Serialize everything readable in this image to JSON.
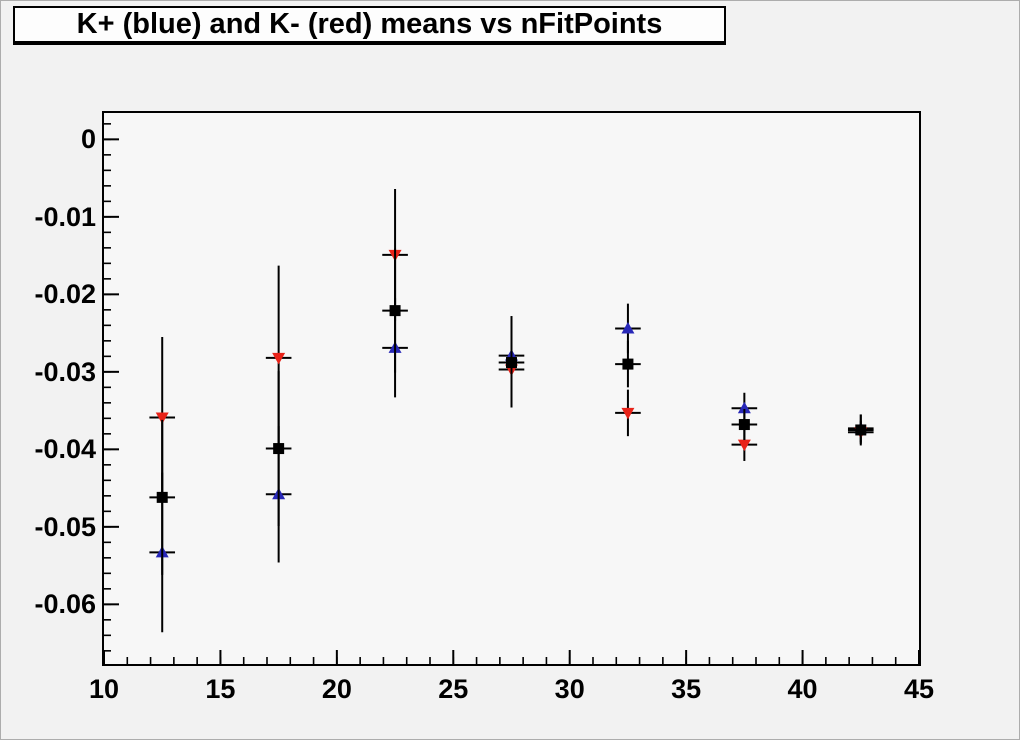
{
  "title": "K+ (blue) and K- (red) means vs nFitPoints",
  "colors": {
    "canvas_background": "#f2f2f2",
    "frame_background": "#f7f7f7",
    "frame_border": "#000000",
    "error_bar_color": "#000000",
    "kplus_blue": "#2828b8",
    "kminus_red": "#e82319",
    "combined_black": "#000000"
  },
  "chart_data": {
    "type": "scatter",
    "title": "K+ (blue) and K- (red) means vs nFitPoints",
    "xlabel": "",
    "ylabel": "",
    "xlim": [
      10,
      45
    ],
    "ylim": [
      -0.0677,
      0.0034
    ],
    "grid": false,
    "legend": "none (series identified by color in title)",
    "x_major_ticks": [
      10,
      15,
      20,
      25,
      30,
      35,
      40,
      45
    ],
    "x_tick_labels": [
      "10",
      "15",
      "20",
      "25",
      "30",
      "35",
      "40",
      "45"
    ],
    "x_minor_step": 1,
    "y_major_ticks": [
      0,
      -0.01,
      -0.02,
      -0.03,
      -0.04,
      -0.05,
      -0.06
    ],
    "y_tick_labels": [
      "0",
      "-0.01",
      "-0.02",
      "-0.03",
      "-0.04",
      "-0.05",
      "-0.06"
    ],
    "y_minor_step": 0.002,
    "series": [
      {
        "name": "K+ (blue)",
        "marker": "triangle-up",
        "color_key": "kplus_blue",
        "points": [
          {
            "x": 12.5,
            "y": -0.0533,
            "ey": 0.0103,
            "ex": 0.55
          },
          {
            "x": 17.5,
            "y": -0.0458,
            "ey": 0.0088,
            "ex": 0.55
          },
          {
            "x": 22.5,
            "y": -0.0269,
            "ey": 0.0064,
            "ex": 0.55
          },
          {
            "x": 27.5,
            "y": -0.0279,
            "ey": 0.0051,
            "ex": 0.55
          },
          {
            "x": 32.5,
            "y": -0.0244,
            "ey": 0.0032,
            "ex": 0.55
          },
          {
            "x": 37.5,
            "y": -0.0347,
            "ey": 0.002,
            "ex": 0.55
          },
          {
            "x": 42.5,
            "y": -0.0373,
            "ey": 0.0018,
            "ex": 0.55
          }
        ]
      },
      {
        "name": "K- (red)",
        "marker": "triangle-down",
        "color_key": "kminus_red",
        "points": [
          {
            "x": 12.5,
            "y": -0.0359,
            "ey": 0.0104,
            "ex": 0.55
          },
          {
            "x": 17.5,
            "y": -0.0282,
            "ey": 0.0119,
            "ex": 0.55
          },
          {
            "x": 22.5,
            "y": -0.0149,
            "ey": 0.0085,
            "ex": 0.55
          },
          {
            "x": 27.5,
            "y": -0.0297,
            "ey": 0.0049,
            "ex": 0.55
          },
          {
            "x": 32.5,
            "y": -0.0353,
            "ey": 0.003,
            "ex": 0.55
          },
          {
            "x": 37.5,
            "y": -0.0394,
            "ey": 0.0021,
            "ex": 0.55
          },
          {
            "x": 42.5,
            "y": -0.0378,
            "ey": 0.0015,
            "ex": 0.55
          }
        ]
      },
      {
        "name": "combined (black squares)",
        "marker": "square",
        "color_key": "combined_black",
        "points": [
          {
            "x": 12.5,
            "y": -0.0462,
            "ey": 0.01,
            "ex": 0.55
          },
          {
            "x": 17.5,
            "y": -0.0399,
            "ey": 0.01,
            "ex": 0.55
          },
          {
            "x": 22.5,
            "y": -0.0221,
            "ey": 0.008,
            "ex": 0.55
          },
          {
            "x": 27.5,
            "y": -0.0288,
            "ey": 0.005,
            "ex": 0.55
          },
          {
            "x": 32.5,
            "y": -0.029,
            "ey": 0.003,
            "ex": 0.55
          },
          {
            "x": 37.5,
            "y": -0.0368,
            "ey": 0.002,
            "ex": 0.55
          },
          {
            "x": 42.5,
            "y": -0.0375,
            "ey": 0.002,
            "ex": 0.55
          }
        ]
      }
    ]
  }
}
